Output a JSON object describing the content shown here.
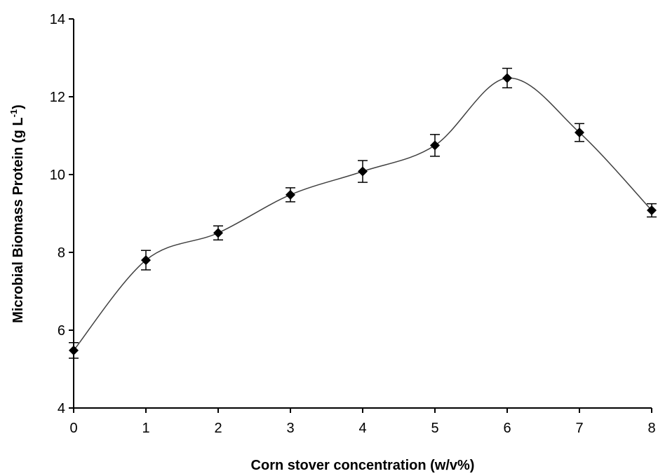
{
  "chart_data": {
    "type": "line",
    "title": "",
    "xlabel": "Corn stover concentration (w/v%)",
    "ylabel": "Microbial Biomass Protein (g L",
    "ylabel_sup": "-1",
    "ylabel_close": ")",
    "xlim": [
      0,
      8
    ],
    "ylim": [
      4,
      14
    ],
    "x_ticks": [
      0,
      1,
      2,
      3,
      4,
      5,
      6,
      7,
      8
    ],
    "x_tick_labels": [
      "0",
      "1",
      "2",
      "3",
      "4",
      "5",
      "6",
      "7",
      "8"
    ],
    "y_ticks": [
      4,
      6,
      8,
      10,
      12,
      14
    ],
    "y_tick_labels": [
      "4",
      "6",
      "8",
      "10",
      "12",
      "14"
    ],
    "grid": false,
    "legend": "none",
    "marker": "diamond",
    "line_style": "smoothed",
    "series": [
      {
        "x": [
          0,
          1,
          2,
          3,
          4,
          5,
          6,
          7,
          8
        ],
        "y": [
          5.48,
          7.8,
          8.5,
          9.48,
          10.08,
          10.75,
          12.48,
          11.08,
          9.08
        ],
        "error": [
          0.2,
          0.25,
          0.18,
          0.18,
          0.28,
          0.28,
          0.25,
          0.23,
          0.17
        ]
      }
    ],
    "colors": {
      "line": "#404040",
      "marker": "#000000",
      "axis": "#000000"
    }
  }
}
